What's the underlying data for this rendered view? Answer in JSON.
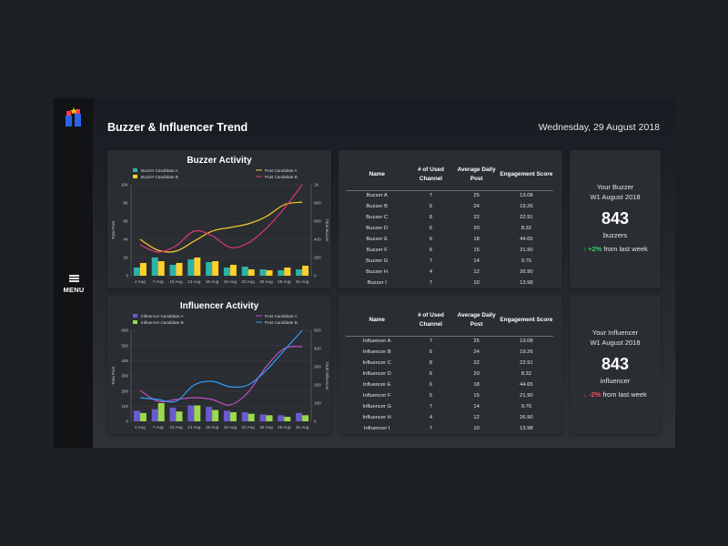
{
  "header": {
    "title": "Buzzer & Influencer Trend",
    "date": "Wednesday, 29 August 2018"
  },
  "sidebar": {
    "menu_label": "MENU"
  },
  "colors": {
    "teal": "#2bb3a8",
    "yellow": "#ffd02b",
    "pink": "#e0357a",
    "purple": "#6a5ad0",
    "lime": "#9bd84e",
    "blue": "#2da0ff",
    "magenta": "#c050c0"
  },
  "buzzer_table": {
    "headers": [
      "Name",
      "# of Used Channel",
      "Average Daily Post",
      "Engagement Score"
    ],
    "rows": [
      [
        "Buzzer A",
        "7",
        "25",
        "13.08"
      ],
      [
        "Buzzer B",
        "6",
        "24",
        "19.26"
      ],
      [
        "Buzzer C",
        "8",
        "22",
        "22.91"
      ],
      [
        "Buzzer D",
        "6",
        "20",
        "8.32"
      ],
      [
        "Buzzer E",
        "6",
        "18",
        "44.65"
      ],
      [
        "Buzzer F",
        "5",
        "15",
        "21.90"
      ],
      [
        "Buzzer G",
        "7",
        "14",
        "9.76"
      ],
      [
        "Buzzer H",
        "4",
        "12",
        "26.90"
      ],
      [
        "Buzzer I",
        "7",
        "10",
        "13.98"
      ]
    ]
  },
  "influencer_table": {
    "headers": [
      "Name",
      "# of Used Channel",
      "Average Daily Post",
      "Engagement Score"
    ],
    "rows": [
      [
        "Influencer A",
        "7",
        "25",
        "13.08"
      ],
      [
        "Influencer B",
        "6",
        "24",
        "19.26"
      ],
      [
        "Influencer C",
        "8",
        "22",
        "22.91"
      ],
      [
        "Influencer D",
        "6",
        "20",
        "8.32"
      ],
      [
        "Influencer E",
        "6",
        "18",
        "44.65"
      ],
      [
        "Influencer F",
        "5",
        "15",
        "21.90"
      ],
      [
        "Influencer G",
        "7",
        "14",
        "9.76"
      ],
      [
        "Influencer H",
        "4",
        "12",
        "26.90"
      ],
      [
        "Influencer I",
        "7",
        "10",
        "13.98"
      ]
    ]
  },
  "buzzer_stat": {
    "label_line1": "Your Buzzer",
    "label_line2": "W1 August 2018",
    "value": "843",
    "unit": "buzzers",
    "trend_arrow": "↑",
    "trend_value": "+2%",
    "trend_text": "from last week",
    "direction": "up"
  },
  "influencer_stat": {
    "label_line1": "Your Influencer",
    "label_line2": "W1 August 2018",
    "value": "843",
    "unit": "influencer",
    "trend_arrow": "↓",
    "trend_value": "-2%",
    "trend_text": "from last week",
    "direction": "down"
  },
  "chart_data": [
    {
      "type": "bar",
      "title": "Buzzer Activity",
      "categories": [
        "4 Aug",
        "7 Aug",
        "10 Aug",
        "13 Aug",
        "16 Aug",
        "19 Aug",
        "22 Aug",
        "25 Aug",
        "28 Aug",
        "31 Aug"
      ],
      "ylabel": "Total Post",
      "ylabel_right": "Total Buzzer",
      "yticks_left": [
        "0",
        "2K",
        "4K",
        "6K",
        "8K",
        "10K"
      ],
      "yticks_right": [
        "0",
        "200",
        "400",
        "600",
        "800",
        "1K"
      ],
      "ylim": [
        0,
        10000
      ],
      "ylim_right": [
        0,
        1000
      ],
      "legend": "top",
      "series": [
        {
          "name": "Buzzer Candidate A",
          "kind": "bar",
          "color": "#2bb3a8",
          "values": [
            900,
            2000,
            1200,
            1800,
            1500,
            900,
            1000,
            700,
            600,
            700
          ]
        },
        {
          "name": "Buzzer Candidate B",
          "kind": "bar",
          "color": "#ffd02b",
          "values": [
            1400,
            1600,
            1400,
            2000,
            1600,
            1200,
            700,
            600,
            900,
            1100
          ]
        },
        {
          "name": "Post Candidate A",
          "kind": "line",
          "axis": "right",
          "color": "#ffd02b",
          "values": [
            400,
            280,
            270,
            380,
            490,
            530,
            570,
            650,
            780,
            810
          ]
        },
        {
          "name": "Post Candidate B",
          "kind": "line",
          "axis": "right",
          "color": "#e0357a",
          "values": [
            340,
            260,
            330,
            490,
            440,
            310,
            360,
            520,
            740,
            1000
          ]
        }
      ]
    },
    {
      "type": "bar",
      "title": "Influencer Activity",
      "categories": [
        "4 Aug",
        "7 Aug",
        "10 Aug",
        "13 Aug",
        "16 Aug",
        "19 Aug",
        "22 Aug",
        "25 Aug",
        "28 Aug",
        "31 Aug"
      ],
      "ylabel": "Total Post",
      "ylabel_right": "Total Influencer",
      "yticks_left": [
        "0",
        "100",
        "200",
        "300",
        "400",
        "500",
        "600"
      ],
      "yticks_right": [
        "0",
        "100",
        "200",
        "300",
        "400",
        "500"
      ],
      "ylim": [
        0,
        600
      ],
      "ylim_right": [
        0,
        500
      ],
      "legend": "top",
      "series": [
        {
          "name": "Influencer Candidate A",
          "kind": "bar",
          "color": "#6a5ad0",
          "values": [
            70,
            80,
            90,
            105,
            95,
            70,
            60,
            45,
            40,
            55
          ]
        },
        {
          "name": "Influencer Candidate B",
          "kind": "bar",
          "color": "#9bd84e",
          "values": [
            55,
            120,
            65,
            105,
            75,
            60,
            50,
            40,
            30,
            40
          ]
        },
        {
          "name": "Post Candidate A",
          "kind": "line",
          "axis": "right",
          "color": "#c050c0",
          "values": [
            170,
            110,
            120,
            130,
            120,
            90,
            160,
            300,
            400,
            410
          ]
        },
        {
          "name": "Post Candidate B",
          "kind": "line",
          "axis": "right",
          "color": "#2da0ff",
          "values": [
            130,
            120,
            110,
            200,
            220,
            190,
            200,
            280,
            390,
            500
          ]
        }
      ]
    }
  ]
}
